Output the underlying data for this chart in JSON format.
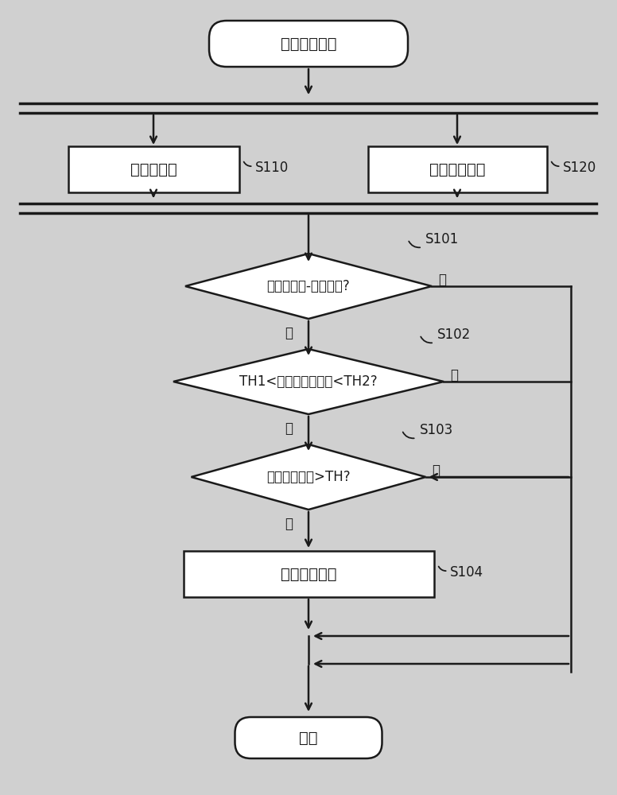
{
  "bg_color": "#d0d0d0",
  "title": "跳跃检测开始",
  "box1_text": "高冲击检测",
  "box1_label": "S110",
  "box2_text": "自由落体检测",
  "box2_label": "S120",
  "diamond1_text": "是否是冲击-冲击区间?",
  "diamond1_label": "S101",
  "diamond1_yes": "是",
  "diamond1_no": "否",
  "diamond2_text": "TH1<区间的持续时间<TH2?",
  "diamond2_label": "S102",
  "diamond2_yes": "是",
  "diamond2_no": "否",
  "diamond3_text": "自由落体比率>TH?",
  "diamond3_label": "S103",
  "diamond3_yes": "是",
  "diamond3_no": "否",
  "rect_text": "检测跳跃区间",
  "rect_label": "S104",
  "end_text": "结束",
  "line_color": "#1a1a1a",
  "box_fill": "#ffffff",
  "text_color": "#1a1a1a"
}
